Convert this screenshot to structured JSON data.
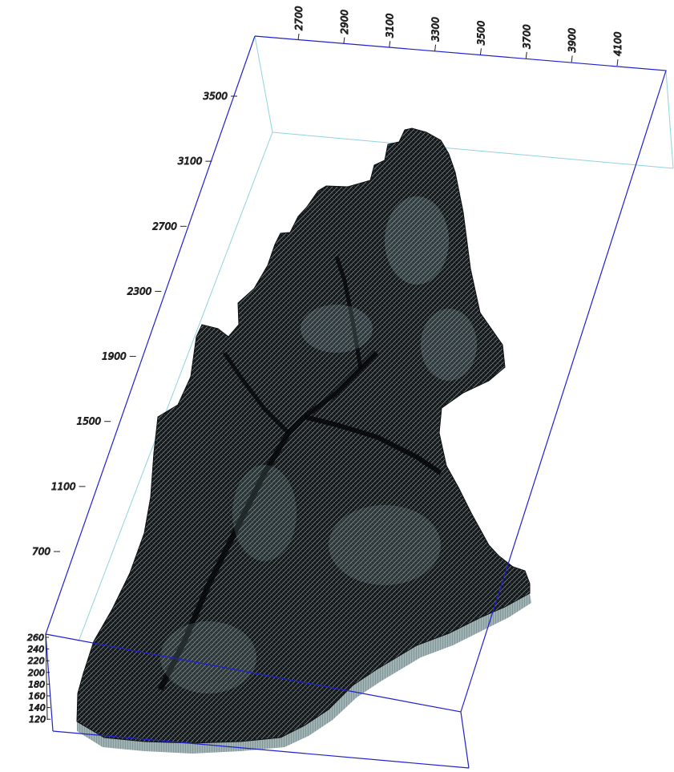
{
  "axes": {
    "x_ticks": [
      "2700",
      "2900",
      "3100",
      "3300",
      "3500",
      "3700",
      "3900",
      "4100"
    ],
    "y_ticks": [
      "3500",
      "3100",
      "2700",
      "2300",
      "1900",
      "1500",
      "1100",
      "700"
    ],
    "z_ticks": [
      "260",
      "240",
      "220",
      "200",
      "180",
      "160",
      "140",
      "120"
    ]
  },
  "colors": {
    "box_front": "#2020d0",
    "box_back": "#8fd3e0",
    "terrain_dark": "#141618",
    "terrain_light": "#bfe0e4",
    "skirt": "#9fb2b4"
  }
}
